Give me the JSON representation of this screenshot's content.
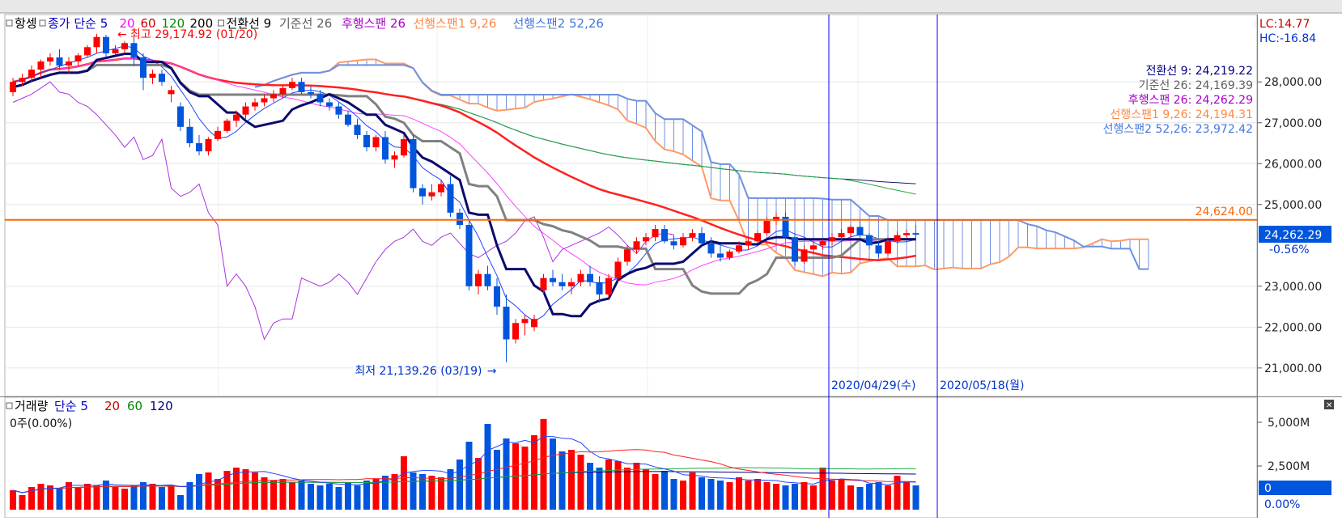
{
  "price_legend": [
    {
      "text": "항셍",
      "color": "#000000",
      "square": true
    },
    {
      "text": "종가 단순 5",
      "color": "#0000cc",
      "square": true
    },
    {
      "text": "20",
      "color": "#ff00ff"
    },
    {
      "text": "60",
      "color": "#cc0000"
    },
    {
      "text": "120",
      "color": "#008800"
    },
    {
      "text": "200",
      "color": "#000000"
    },
    {
      "text": "전환선 9",
      "color": "#000000",
      "square": true
    },
    {
      "text": "기준선 26",
      "color": "#606060"
    },
    {
      "text": "후행스팬 26",
      "color": "#aa00cc"
    },
    {
      "text": "선행스팬1 9,26",
      "color": "#ff8844"
    },
    {
      "text": "선행스팬2 52,26",
      "color": "#4477dd"
    }
  ],
  "volume_legend": [
    {
      "text": "거래량",
      "color": "#000000",
      "square": true
    },
    {
      "text": "단순 5",
      "color": "#0000cc"
    },
    {
      "text": "20",
      "color": "#cc0000"
    },
    {
      "text": "60",
      "color": "#008800"
    },
    {
      "text": "120",
      "color": "#000080"
    }
  ],
  "volume_status": "0주(0.00%)",
  "top_right": {
    "lc": "LC:14.77",
    "hc": "HC:-16.84"
  },
  "ichimoku_values": [
    {
      "text": "전환선 9: 24,219.22",
      "color": "#000080"
    },
    {
      "text": "기준선 26: 24,169.39",
      "color": "#606060"
    },
    {
      "text": "후행스팬 26: 24,262.29",
      "color": "#aa00cc"
    },
    {
      "text": "선행스팬1 9,26: 24,194.31",
      "color": "#ff8844"
    },
    {
      "text": "선행스팬2 52,26: 23,972.42",
      "color": "#4477dd"
    }
  ],
  "annotations": {
    "high_label": "최고 29,174.92 (01/20)",
    "low_label": "최저 21,139.26 (03/19)",
    "hline_label": "24,624.00",
    "vline1_label": "2020/04/29(수)",
    "vline2_label": "2020/05/18(월)",
    "current_price": "24,262.29",
    "current_change": "-0.56%",
    "volume_current": "0",
    "volume_change": "0.00%"
  },
  "colors": {
    "up": "#ff0000",
    "down": "#0055dd",
    "vline": "#0000ff",
    "hline": "#ff6600",
    "price_box": "#0055dd"
  },
  "chart_data": {
    "type": "candlestick",
    "price_axis": {
      "ticks": [
        "28,000.00",
        "27,000.00",
        "26,000.00",
        "25,000.00",
        "23,000.00",
        "22,000.00",
        "21,000.00"
      ],
      "range": [
        20700,
        29450
      ]
    },
    "volume_axis": {
      "ticks": [
        "5,000M",
        "2,500M"
      ],
      "range": [
        0,
        6500
      ]
    },
    "horizontal_line": 24624.0,
    "high": {
      "value": 29174.92,
      "date": "01/20"
    },
    "low": {
      "value": 21139.26,
      "date": "03/19"
    },
    "vertical_lines": [
      "2020/04/29(수)",
      "2020/05/18(월)"
    ],
    "candles": [
      [
        27750,
        28100,
        27650,
        28000
      ],
      [
        28000,
        28200,
        27900,
        28100
      ],
      [
        28100,
        28400,
        28000,
        28300
      ],
      [
        28300,
        28550,
        28100,
        28500
      ],
      [
        28500,
        28700,
        28400,
        28600
      ],
      [
        28600,
        28800,
        28300,
        28400
      ],
      [
        28400,
        28600,
        28200,
        28500
      ],
      [
        28500,
        28700,
        28400,
        28650
      ],
      [
        28650,
        28900,
        28600,
        28850
      ],
      [
        28850,
        29174.92,
        28700,
        29100
      ],
      [
        29100,
        29150,
        28600,
        28700
      ],
      [
        28700,
        28900,
        28650,
        28800
      ],
      [
        28800,
        29000,
        28700,
        28950
      ],
      [
        28950,
        29100,
        28400,
        28600
      ],
      [
        28600,
        28700,
        27800,
        28100
      ],
      [
        28100,
        28300,
        27950,
        28200
      ],
      [
        28200,
        28300,
        27900,
        28000
      ],
      [
        27700,
        27900,
        27500,
        27800
      ],
      [
        27400,
        27500,
        26800,
        26900
      ],
      [
        26900,
        27100,
        26400,
        26500
      ],
      [
        26500,
        26700,
        26200,
        26300
      ],
      [
        26300,
        26650,
        26200,
        26600
      ],
      [
        26600,
        26900,
        26550,
        26800
      ],
      [
        26800,
        27100,
        26750,
        27050
      ],
      [
        27050,
        27300,
        26900,
        27200
      ],
      [
        27200,
        27500,
        27100,
        27400
      ],
      [
        27400,
        27600,
        27300,
        27500
      ],
      [
        27500,
        27700,
        27400,
        27600
      ],
      [
        27600,
        27800,
        27500,
        27700
      ],
      [
        27700,
        27900,
        27600,
        27850
      ],
      [
        27850,
        28100,
        27800,
        28000
      ],
      [
        28000,
        28100,
        27700,
        27750
      ],
      [
        27750,
        27900,
        27600,
        27700
      ],
      [
        27700,
        27800,
        27400,
        27500
      ],
      [
        27500,
        27600,
        27300,
        27400
      ],
      [
        27400,
        27500,
        27100,
        27200
      ],
      [
        27200,
        27300,
        26900,
        26950
      ],
      [
        26950,
        27100,
        26600,
        26700
      ],
      [
        26700,
        26800,
        26300,
        26400
      ],
      [
        26400,
        26700,
        26300,
        26650
      ],
      [
        26650,
        26800,
        26000,
        26100
      ],
      [
        26100,
        26300,
        25900,
        26200
      ],
      [
        26200,
        26700,
        26150,
        26600
      ],
      [
        26600,
        26700,
        25300,
        25400
      ],
      [
        25400,
        25500,
        25000,
        25200
      ],
      [
        25200,
        25500,
        25100,
        25300
      ],
      [
        25300,
        25600,
        25200,
        25500
      ],
      [
        25500,
        25700,
        24700,
        24800
      ],
      [
        24800,
        24900,
        24400,
        24500
      ],
      [
        24500,
        24600,
        22900,
        23000
      ],
      [
        23000,
        23400,
        22800,
        23300
      ],
      [
        23300,
        23500,
        22900,
        23000
      ],
      [
        23000,
        23200,
        22300,
        22500
      ],
      [
        22500,
        22800,
        21139.26,
        21700
      ],
      [
        21700,
        22200,
        21600,
        22100
      ],
      [
        22100,
        22300,
        21800,
        22200
      ],
      [
        22000,
        22300,
        21900,
        22200
      ],
      [
        22900,
        23300,
        22800,
        23200
      ],
      [
        23200,
        23400,
        23000,
        23100
      ],
      [
        23100,
        23300,
        22900,
        23000
      ],
      [
        23000,
        23200,
        22800,
        23100
      ],
      [
        23100,
        23400,
        23000,
        23300
      ],
      [
        23300,
        23500,
        23000,
        23100
      ],
      [
        23100,
        23250,
        22600,
        22800
      ],
      [
        22800,
        23300,
        22700,
        23200
      ],
      [
        23200,
        23700,
        23100,
        23600
      ],
      [
        23600,
        24000,
        23500,
        23900
      ],
      [
        23900,
        24200,
        23800,
        24100
      ],
      [
        24100,
        24300,
        24000,
        24200
      ],
      [
        24200,
        24500,
        24100,
        24400
      ],
      [
        24400,
        24500,
        24050,
        24100
      ],
      [
        24100,
        24250,
        23900,
        24000
      ],
      [
        24000,
        24300,
        23950,
        24200
      ],
      [
        24200,
        24400,
        24100,
        24300
      ],
      [
        24300,
        24450,
        24000,
        24050
      ],
      [
        24050,
        24200,
        23700,
        23800
      ],
      [
        23800,
        24000,
        23600,
        23700
      ],
      [
        23700,
        23900,
        23650,
        23850
      ],
      [
        23850,
        24100,
        23800,
        24000
      ],
      [
        24000,
        24200,
        23900,
        24100
      ],
      [
        24100,
        24350,
        24050,
        24300
      ],
      [
        24300,
        24700,
        24250,
        24600
      ],
      [
        24600,
        24800,
        24500,
        24700
      ],
      [
        24700,
        24800,
        24150,
        24200
      ],
      [
        24200,
        24300,
        23500,
        23600
      ],
      [
        23600,
        24000,
        23550,
        23900
      ],
      [
        23900,
        24100,
        23800,
        24000
      ],
      [
        24000,
        24150,
        23900,
        24100
      ],
      [
        24100,
        24300,
        24000,
        24200
      ],
      [
        24200,
        24400,
        24100,
        24300
      ],
      [
        24300,
        24500,
        24200,
        24450
      ],
      [
        24450,
        24600,
        24200,
        24250
      ],
      [
        24250,
        24300,
        23900,
        24000
      ],
      [
        24000,
        24100,
        23700,
        23800
      ],
      [
        23800,
        24200,
        23750,
        24100
      ],
      [
        24100,
        24350,
        24050,
        24250
      ],
      [
        24250,
        24400,
        24200,
        24300
      ],
      [
        24300,
        24500,
        24150,
        24262.29
      ]
    ],
    "volume": [
      1200,
      900,
      1400,
      1600,
      1500,
      1300,
      1700,
      1400,
      1600,
      1500,
      1800,
      1400,
      1300,
      1500,
      1700,
      1600,
      1400,
      1500,
      900,
      1700,
      2200,
      2300,
      1900,
      2400,
      2600,
      2500,
      2300,
      2000,
      1800,
      1900,
      1700,
      1800,
      1600,
      1500,
      1600,
      1400,
      1700,
      1500,
      1800,
      1900,
      2100,
      2200,
      3300,
      2300,
      2200,
      2100,
      2000,
      2500,
      3100,
      4200,
      3200,
      5300,
      3700,
      4400,
      4100,
      3900,
      4600,
      5600,
      4400,
      3600,
      3700,
      3400,
      2900,
      2600,
      3100,
      3000,
      2600,
      2900,
      2500,
      2200,
      2400,
      1900,
      1800,
      2300,
      2000,
      1900,
      1800,
      1700,
      2000,
      1800,
      1900,
      1700,
      1600,
      1500,
      1600,
      1700,
      1500,
      2600,
      1800,
      1900,
      1500,
      1400,
      1600,
      1700,
      1500,
      2100,
      1700,
      1500
    ]
  }
}
